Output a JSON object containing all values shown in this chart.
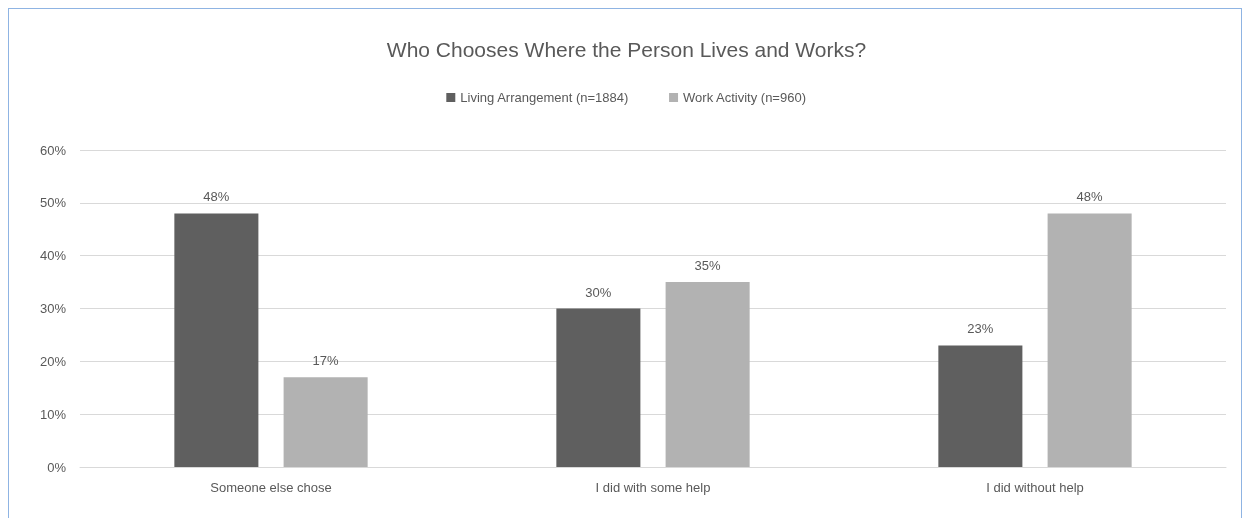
{
  "chart_data": {
    "type": "bar",
    "title": "Who Chooses Where the Person Lives and Works?",
    "categories": [
      "Someone else chose",
      "I did with some help",
      "I did without help"
    ],
    "series": [
      {
        "name": "Living Arrangement (n=1884)",
        "color": "#5f5f5f",
        "values": [
          48,
          30,
          23
        ],
        "value_labels": [
          "48%",
          "30%",
          "23%"
        ]
      },
      {
        "name": "Work Activity (n=960)",
        "color": "#b2b2b2",
        "values": [
          17,
          35,
          48
        ],
        "value_labels": [
          "17%",
          "35%",
          "48%"
        ]
      }
    ],
    "ylim": [
      0,
      60
    ],
    "yticks": [
      {
        "value": 0,
        "label": "0%"
      },
      {
        "value": 10,
        "label": "10%"
      },
      {
        "value": 20,
        "label": "20%"
      },
      {
        "value": 30,
        "label": "30%"
      },
      {
        "value": 40,
        "label": "40%"
      },
      {
        "value": 50,
        "label": "50%"
      },
      {
        "value": 60,
        "label": "60%"
      }
    ],
    "grid": "y",
    "legend": "top"
  }
}
